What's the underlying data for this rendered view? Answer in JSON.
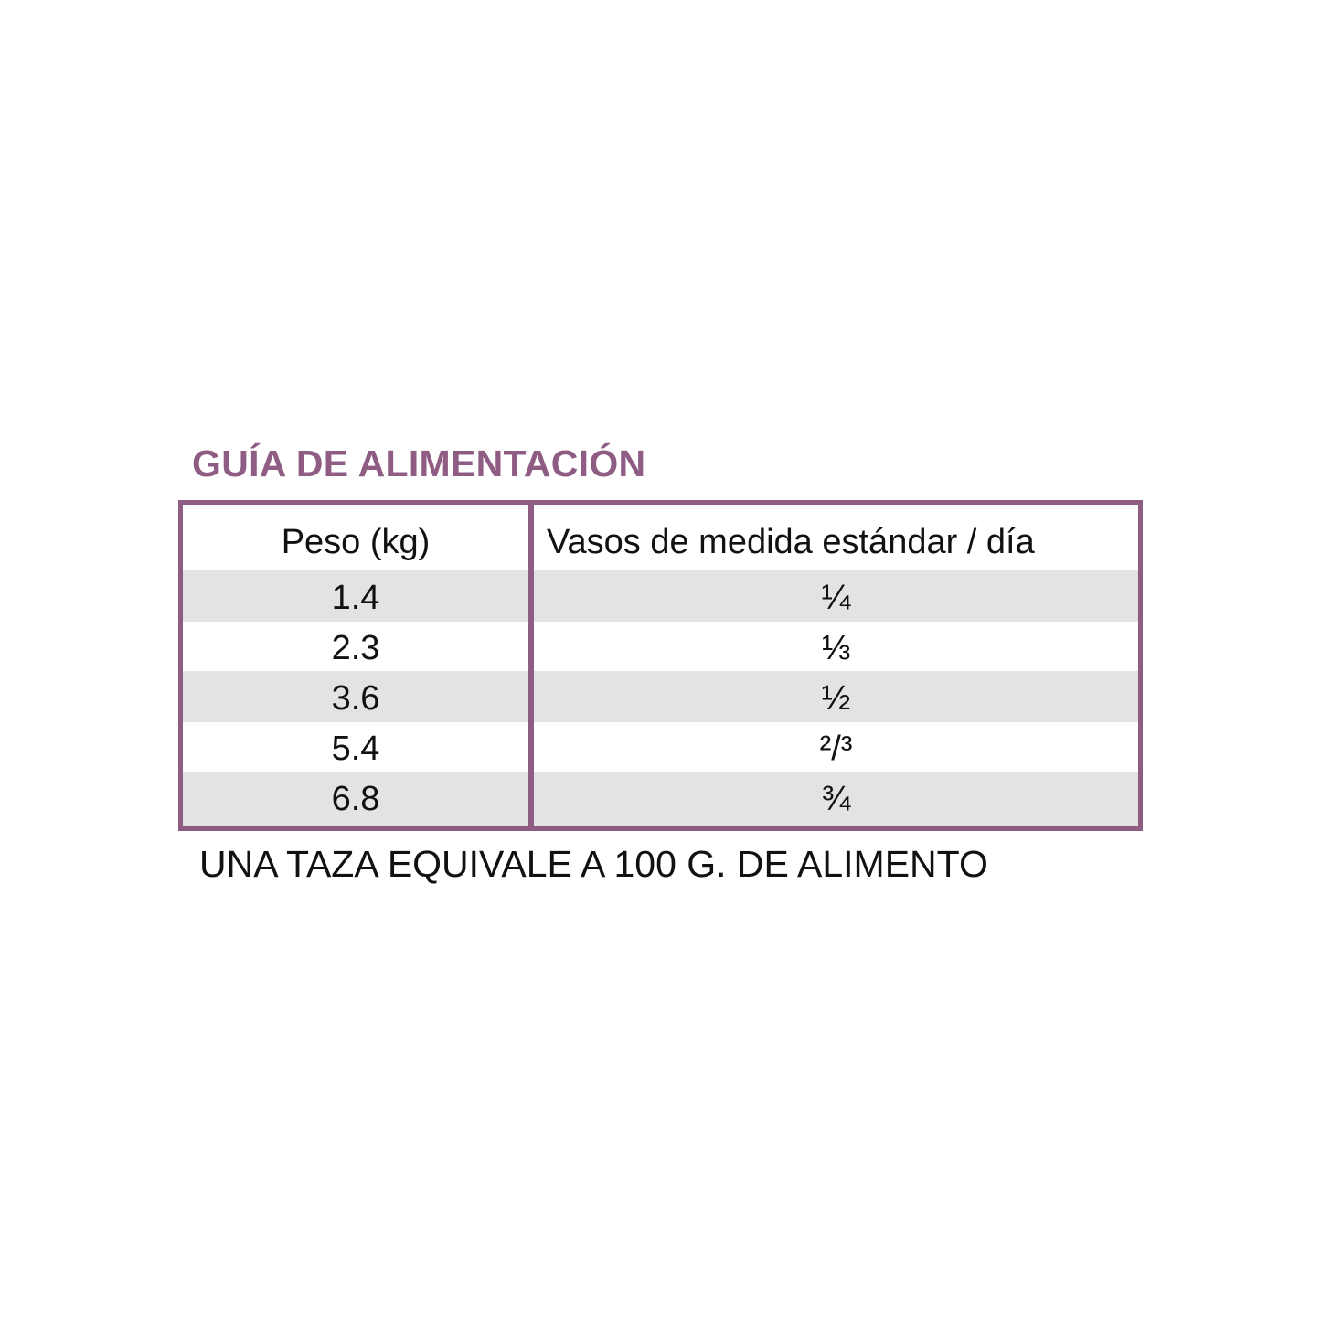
{
  "title": "GUÍA DE ALIMENTACIÓN",
  "table": {
    "headers": [
      "Peso (kg)",
      "Vasos de medida estándar / día"
    ],
    "rows": [
      [
        "1.4",
        "¼"
      ],
      [
        "2.3",
        "⅓"
      ],
      [
        "3.6",
        "½"
      ],
      [
        "5.4",
        "²/³"
      ],
      [
        "6.8",
        "¾"
      ]
    ]
  },
  "note": "UNA TAZA EQUIVALE A 100 G. DE ALIMENTO",
  "colors": {
    "accent": "#8f5d84",
    "row_shade": "#e3e3e3"
  }
}
